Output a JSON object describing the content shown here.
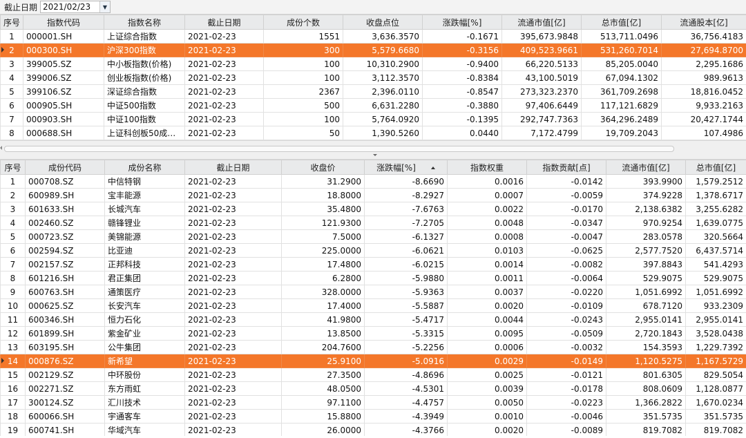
{
  "toolbar": {
    "date_label": "截止日期",
    "date_value": "2021/02/23"
  },
  "index_table": {
    "headers": [
      "序号",
      "指数代码",
      "指数名称",
      "截止日期",
      "成份个数",
      "收盘点位",
      "涨跌幅[%]",
      "流通市值[亿]",
      "总市值[亿]",
      "流通股本[亿]"
    ],
    "rows": [
      [
        "1",
        "000001.SH",
        "上证综合指数",
        "2021-02-23",
        "1551",
        "3,636.3570",
        "-0.1671",
        "395,673.9848",
        "513,711.0496",
        "36,756.4183"
      ],
      [
        "2",
        "000300.SH",
        "沪深300指数",
        "2021-02-23",
        "300",
        "5,579.6680",
        "-0.3156",
        "409,523.9661",
        "531,260.7014",
        "27,694.8700"
      ],
      [
        "3",
        "399005.SZ",
        "中小板指数(价格)",
        "2021-02-23",
        "100",
        "10,310.2900",
        "-0.9400",
        "66,220.5133",
        "85,205.0040",
        "2,295.1686"
      ],
      [
        "4",
        "399006.SZ",
        "创业板指数(价格)",
        "2021-02-23",
        "100",
        "3,112.3570",
        "-0.8384",
        "43,100.5019",
        "67,094.1302",
        "989.9613"
      ],
      [
        "5",
        "399106.SZ",
        "深证综合指数",
        "2021-02-23",
        "2367",
        "2,396.0110",
        "-0.8547",
        "273,323.2370",
        "361,709.2698",
        "18,816.0452"
      ],
      [
        "6",
        "000905.SH",
        "中证500指数",
        "2021-02-23",
        "500",
        "6,631.2280",
        "-0.3880",
        "97,406.6449",
        "117,121.6829",
        "9,933.2163"
      ],
      [
        "7",
        "000903.SH",
        "中证100指数",
        "2021-02-23",
        "100",
        "5,764.0920",
        "-0.1395",
        "292,747.7363",
        "364,296.2489",
        "20,427.1744"
      ],
      [
        "8",
        "000688.SH",
        "上证科创板50成份…",
        "2021-02-23",
        "50",
        "1,390.5260",
        "0.0440",
        "7,172.4799",
        "19,709.2043",
        "107.4986"
      ]
    ],
    "selected_row": 1
  },
  "stock_table": {
    "headers": [
      "序号",
      "成份代码",
      "成份名称",
      "截止日期",
      "收盘价",
      "涨跌幅[%]",
      "指数权重",
      "指数贡献[点]",
      "流通市值[亿]",
      "总市值[亿]"
    ],
    "sorted_column": 5,
    "rows": [
      [
        "1",
        "000708.SZ",
        "中信特钢",
        "2021-02-23",
        "31.2900",
        "-8.6690",
        "0.0016",
        "-0.0142",
        "393.9900",
        "1,579.2512"
      ],
      [
        "2",
        "600989.SH",
        "宝丰能源",
        "2021-02-23",
        "18.8000",
        "-8.2927",
        "0.0007",
        "-0.0059",
        "374.9228",
        "1,378.6717"
      ],
      [
        "3",
        "601633.SH",
        "长城汽车",
        "2021-02-23",
        "35.4800",
        "-7.6763",
        "0.0022",
        "-0.0170",
        "2,138.6382",
        "3,255.6282"
      ],
      [
        "4",
        "002460.SZ",
        "赣锋锂业",
        "2021-02-23",
        "121.9300",
        "-7.2705",
        "0.0048",
        "-0.0347",
        "970.9254",
        "1,639.0775"
      ],
      [
        "5",
        "000723.SZ",
        "美锦能源",
        "2021-02-23",
        "7.5000",
        "-6.1327",
        "0.0008",
        "-0.0047",
        "283.0578",
        "320.5664"
      ],
      [
        "6",
        "002594.SZ",
        "比亚迪",
        "2021-02-23",
        "225.0000",
        "-6.0621",
        "0.0103",
        "-0.0625",
        "2,577.7520",
        "6,437.5714"
      ],
      [
        "7",
        "002157.SZ",
        "正邦科技",
        "2021-02-23",
        "17.4800",
        "-6.0215",
        "0.0014",
        "-0.0082",
        "397.8843",
        "541.4293"
      ],
      [
        "8",
        "601216.SH",
        "君正集团",
        "2021-02-23",
        "6.2800",
        "-5.9880",
        "0.0011",
        "-0.0064",
        "529.9075",
        "529.9075"
      ],
      [
        "9",
        "600763.SH",
        "通策医疗",
        "2021-02-23",
        "328.0000",
        "-5.9363",
        "0.0037",
        "-0.0220",
        "1,051.6992",
        "1,051.6992"
      ],
      [
        "10",
        "000625.SZ",
        "长安汽车",
        "2021-02-23",
        "17.4000",
        "-5.5887",
        "0.0020",
        "-0.0109",
        "678.7120",
        "933.2309"
      ],
      [
        "11",
        "600346.SH",
        "恒力石化",
        "2021-02-23",
        "41.9800",
        "-5.4717",
        "0.0044",
        "-0.0243",
        "2,955.0141",
        "2,955.0141"
      ],
      [
        "12",
        "601899.SH",
        "紫金矿业",
        "2021-02-23",
        "13.8500",
        "-5.3315",
        "0.0095",
        "-0.0509",
        "2,720.1843",
        "3,528.0438"
      ],
      [
        "13",
        "603195.SH",
        "公牛集团",
        "2021-02-23",
        "204.7600",
        "-5.2256",
        "0.0006",
        "-0.0032",
        "154.3593",
        "1,229.7392"
      ],
      [
        "14",
        "000876.SZ",
        "新希望",
        "2021-02-23",
        "25.9100",
        "-5.0916",
        "0.0029",
        "-0.0149",
        "1,120.5275",
        "1,167.5729"
      ],
      [
        "15",
        "002129.SZ",
        "中环股份",
        "2021-02-23",
        "27.3500",
        "-4.8696",
        "0.0025",
        "-0.0121",
        "801.6305",
        "829.5054"
      ],
      [
        "16",
        "002271.SZ",
        "东方雨虹",
        "2021-02-23",
        "48.0500",
        "-4.5301",
        "0.0039",
        "-0.0178",
        "808.0609",
        "1,128.0877"
      ],
      [
        "17",
        "300124.SZ",
        "汇川技术",
        "2021-02-23",
        "97.1100",
        "-4.4757",
        "0.0050",
        "-0.0223",
        "1,366.2822",
        "1,670.0234"
      ],
      [
        "18",
        "600066.SH",
        "宇通客车",
        "2021-02-23",
        "15.8800",
        "-4.3949",
        "0.0010",
        "-0.0046",
        "351.5735",
        "351.5735"
      ],
      [
        "19",
        "600741.SH",
        "华域汽车",
        "2021-02-23",
        "26.0000",
        "-4.3766",
        "0.0020",
        "-0.0089",
        "819.7082",
        "819.7082"
      ]
    ],
    "selected_row": 13
  }
}
